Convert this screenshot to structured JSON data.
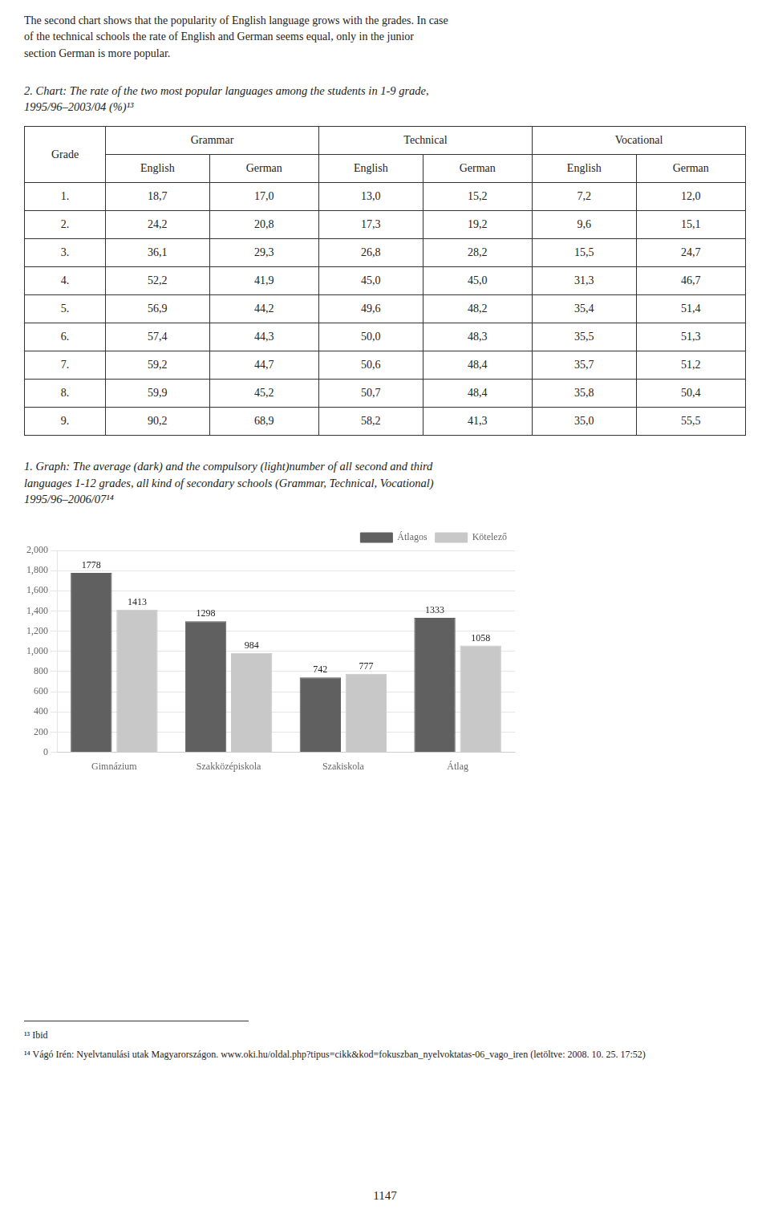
{
  "intro_text": "The second chart shows that the popularity of English language grows with the grades. In case\nof the technical schools the rate of English and German seems equal, only in the junior\nsection German is more popular.",
  "chart_data": [
    {
      "type": "table",
      "title": "2. Chart: The rate of the two most popular languages among the students in 1-9 grade,\n1995/96–2003/04 (%)¹³",
      "category_label": "Grade",
      "column_groups": [
        "Grammar",
        "Technical",
        "Vocational"
      ],
      "categories": [
        "1.",
        "2.",
        "3.",
        "4.",
        "5.",
        "6.",
        "7.",
        "8.",
        "9."
      ],
      "series": [
        {
          "group": "Grammar",
          "name": "English",
          "values": [
            18.7,
            24.2,
            36.1,
            52.2,
            56.9,
            57.4,
            59.2,
            59.9,
            90.2
          ],
          "value_labels": [
            "18,7",
            "24,2",
            "36,1",
            "52,2",
            "56,9",
            "57,4",
            "59,2",
            "59,9",
            "90,2"
          ]
        },
        {
          "group": "Grammar",
          "name": "German",
          "values": [
            17.0,
            20.8,
            29.3,
            41.9,
            44.2,
            44.3,
            44.7,
            45.2,
            68.9
          ],
          "value_labels": [
            "17,0",
            "20,8",
            "29,3",
            "41,9",
            "44,2",
            "44,3",
            "44,7",
            "45,2",
            "68,9"
          ]
        },
        {
          "group": "Technical",
          "name": "English",
          "values": [
            13.0,
            17.3,
            26.8,
            45.0,
            49.6,
            50.0,
            50.6,
            50.7,
            58.2
          ],
          "value_labels": [
            "13,0",
            "17,3",
            "26,8",
            "45,0",
            "49,6",
            "50,0",
            "50,6",
            "50,7",
            "58,2"
          ]
        },
        {
          "group": "Technical",
          "name": "German",
          "values": [
            15.2,
            19.2,
            28.2,
            45.0,
            48.2,
            48.3,
            48.4,
            48.4,
            41.3
          ],
          "value_labels": [
            "15,2",
            "19,2",
            "28,2",
            "45,0",
            "48,2",
            "48,3",
            "48,4",
            "48,4",
            "41,3"
          ]
        },
        {
          "group": "Vocational",
          "name": "English",
          "values": [
            7.2,
            9.6,
            15.5,
            31.3,
            35.4,
            35.5,
            35.7,
            35.8,
            35.0
          ],
          "value_labels": [
            "7,2",
            "9,6",
            "15,5",
            "31,3",
            "35,4",
            "35,5",
            "35,7",
            "35,8",
            "35,0"
          ]
        },
        {
          "group": "Vocational",
          "name": "German",
          "values": [
            12.0,
            15.1,
            24.7,
            46.7,
            51.4,
            51.3,
            51.2,
            50.4,
            55.5
          ],
          "value_labels": [
            "12,0",
            "15,1",
            "24,7",
            "46,7",
            "51,4",
            "51,3",
            "51,2",
            "50,4",
            "55,5"
          ]
        }
      ]
    },
    {
      "type": "bar",
      "title": "1. Graph: The average (dark) and the compulsory (light)number of all second and third\nlanguages 1-12 grades, all kind of secondary schools (Grammar, Technical, Vocational)\n1995/96–2006/07¹⁴",
      "categories": [
        "Gimnázium",
        "Szakközépiskola",
        "Szakiskola",
        "Átlag"
      ],
      "series": [
        {
          "name": "Átlagos",
          "color": "#606060",
          "values": [
            1778,
            1298,
            742,
            1333
          ]
        },
        {
          "name": "Kötelező",
          "color": "#c8c8c8",
          "values": [
            1413,
            984,
            777,
            1058
          ]
        }
      ],
      "ylim": [
        0,
        2000
      ],
      "yticks": [
        0,
        200,
        400,
        600,
        800,
        1000,
        1200,
        1400,
        1600,
        1800,
        2000
      ],
      "grid": true,
      "legend": "upper right",
      "data_labels": true
    }
  ],
  "footnotes": [
    "¹³ Ibid",
    "¹⁴ Vágó Irén: Nyelvtanulási utak Magyarországon. www.oki.hu/oldal.php?tipus=cikk&kod=fokuszban_nyelvoktatas-06_vago_iren (letöltve: 2008. 10. 25. 17:52)"
  ],
  "page_number": "1147"
}
